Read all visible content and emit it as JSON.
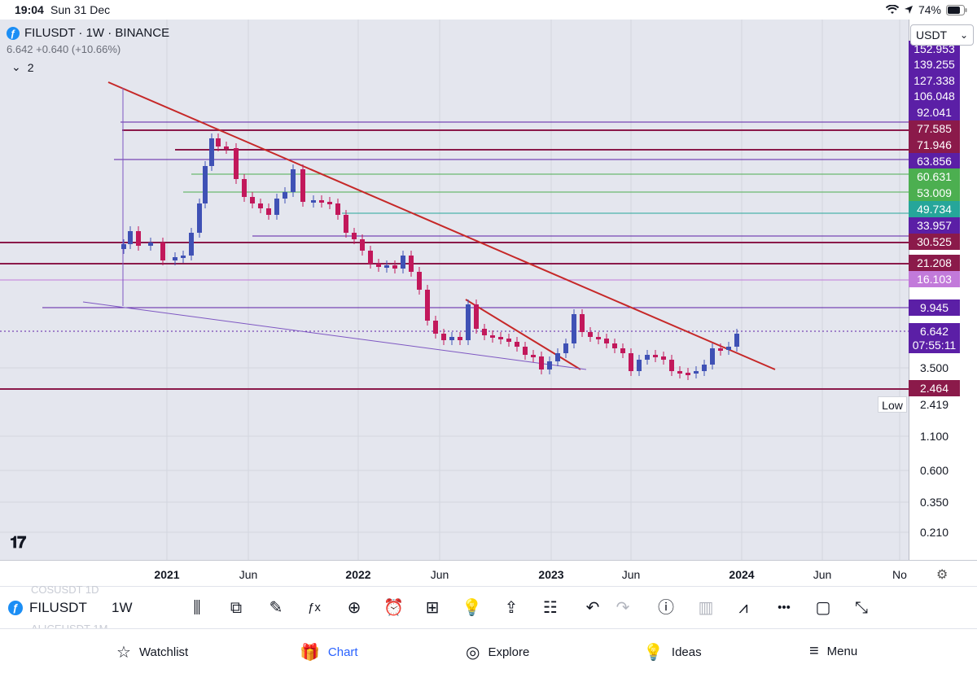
{
  "status_bar": {
    "time": "19:04",
    "date": "Sun 31 Dec",
    "battery": "74%",
    "wifi_icon": "wifi-icon",
    "location_icon": "location-icon",
    "battery_icon": "battery-icon"
  },
  "legend": {
    "symbol": "FILUSDT · 1W · BINANCE",
    "price_change": "6.642  +0.640 (+10.66%)",
    "collapsed_count": "2"
  },
  "currency": {
    "selected": "USDT"
  },
  "price_axis": {
    "labels": [
      {
        "text": "152.953",
        "color": "#5b1fa6"
      },
      {
        "text": "139.255",
        "color": "#5b1fa6"
      },
      {
        "text": "127.338",
        "color": "#5b1fa6"
      },
      {
        "text": "106.048",
        "color": "#5b1fa6"
      },
      {
        "text": "92.041",
        "color": "#5b1fa6"
      },
      {
        "text": "77.585",
        "color": "#8b1a4a"
      },
      {
        "text": "71.946",
        "color": "#8b1a4a"
      },
      {
        "text": "63.856",
        "color": "#5b1fa6"
      },
      {
        "text": "60.631",
        "color": "#4caf50"
      },
      {
        "text": "53.009",
        "color": "#4caf50"
      },
      {
        "text": "49.734",
        "color": "#26a69a"
      },
      {
        "text": "33.957",
        "color": "#5b1fa6"
      },
      {
        "text": "30.525",
        "color": "#8b1a4a"
      },
      {
        "text": "21.208",
        "color": "#8b1a4a"
      },
      {
        "text": "16.103",
        "color": "#c27ada"
      },
      {
        "text": "9.945",
        "color": "#5b1fa6"
      },
      {
        "text": "6.642",
        "color": "#5b1fa6"
      },
      {
        "text": "07:55:11",
        "color": "#5b1fa6"
      },
      {
        "text": "3.500",
        "color": ""
      },
      {
        "text": "2.464",
        "color": "#8b1a4a"
      },
      {
        "text": "2.419",
        "color": ""
      },
      {
        "text": "1.100",
        "color": ""
      },
      {
        "text": "0.600",
        "color": ""
      },
      {
        "text": "0.350",
        "color": ""
      },
      {
        "text": "0.210",
        "color": ""
      }
    ],
    "low_label": "Low"
  },
  "time_axis": {
    "labels": [
      "2021",
      "Jun",
      "2022",
      "Jun",
      "2023",
      "Jun",
      "2024",
      "Jun",
      "No"
    ]
  },
  "toolbar": {
    "ghost_top": "COSUSDT    1D",
    "ghost_bottom": "ALICEUSDT   1M",
    "symbol": "FILUSDT",
    "interval": "1W",
    "tools": [
      "candles-icon",
      "indicators-compare-icon",
      "draw-pen-icon",
      "fx-icon",
      "add-icon",
      "alarm-icon",
      "layout-grid-icon",
      "idea-bulb-icon",
      "share-icon",
      "object-tree-icon",
      "undo-icon",
      "redo-icon",
      "info-icon",
      "volume-icon",
      "trend-icon",
      "more-icon",
      "fullscreen-icon",
      "expand-icon"
    ]
  },
  "tabs": [
    {
      "label": "Watchlist",
      "icon": "star-icon"
    },
    {
      "label": "Chart",
      "icon": "gift-icon"
    },
    {
      "label": "Explore",
      "icon": "compass-icon"
    },
    {
      "label": "Ideas",
      "icon": "bulb-icon"
    },
    {
      "label": "Menu",
      "icon": "hamburger-icon"
    }
  ],
  "colors": {
    "up": "#3f51b5",
    "down": "#c2185b",
    "trendline": "#c62828",
    "accent": "#2962ff"
  },
  "chart_data": {
    "type": "candlestick",
    "title": "FILUSDT · 1W · BINANCE",
    "scale": "log",
    "x_ticks": [
      "2021",
      "Jun",
      "2022",
      "Jun",
      "2023",
      "Jun",
      "2024",
      "Jun",
      "No"
    ],
    "y_ticks": [
      152.953,
      139.255,
      127.338,
      106.048,
      92.041,
      77.585,
      71.946,
      63.856,
      60.631,
      53.009,
      49.734,
      33.957,
      30.525,
      21.208,
      16.103,
      9.945,
      6.642,
      3.5,
      2.464,
      2.419,
      1.1,
      0.6,
      0.35,
      0.21
    ],
    "horizontal_levels": [
      92.041,
      77.585,
      71.946,
      63.856,
      60.631,
      53.009,
      49.734,
      33.957,
      30.525,
      21.208,
      16.103,
      9.945,
      2.464
    ],
    "last_price": 6.642,
    "change": "+0.640 (+10.66%)",
    "low": 2.419,
    "countdown": "07:55:11"
  }
}
